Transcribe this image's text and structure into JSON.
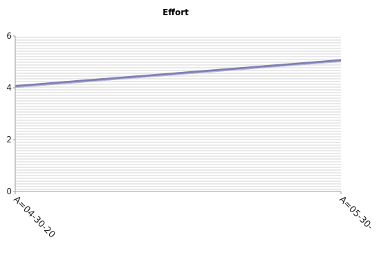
{
  "chart_data": {
    "type": "line",
    "title": "Effort",
    "xlabel": "",
    "ylabel": "",
    "categories": [
      "A=04-30-20",
      "A=05-30-"
    ],
    "series": [
      {
        "values": [
          4.05,
          5.05
        ]
      }
    ],
    "ylim": [
      0,
      6
    ],
    "yticks": [
      "0",
      "2",
      "4",
      "6"
    ],
    "grid": true,
    "colors": {
      "line": "#7f7fb4",
      "line_highlight": "#b8b8dc",
      "stripe": "#e9e9e9",
      "axis": "#9a9a9a"
    }
  }
}
